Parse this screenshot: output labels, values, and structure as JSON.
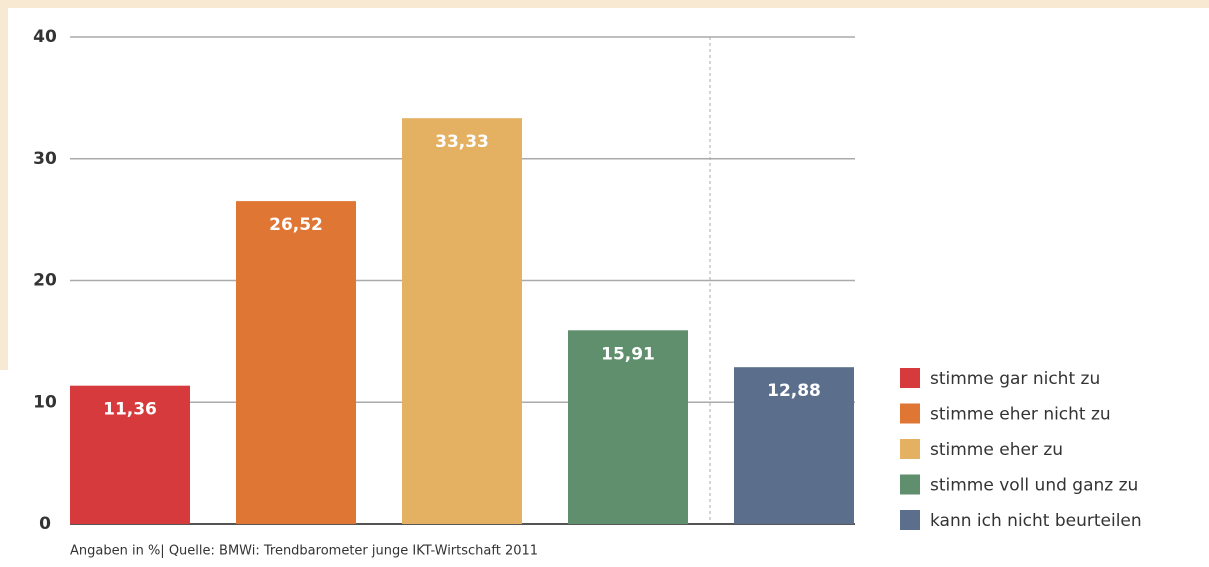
{
  "chart_data": {
    "type": "bar",
    "categories": [
      "stimme gar nicht zu",
      "stimme eher nicht zu",
      "stimme eher zu",
      "stimme voll und ganz zu",
      "kann ich nicht beurteilen"
    ],
    "values": [
      11.36,
      26.52,
      33.33,
      15.91,
      12.88
    ],
    "value_labels": [
      "11,36",
      "26,52",
      "33,33",
      "15,91",
      "12,88"
    ],
    "colors": [
      "#d63a3c",
      "#e07634",
      "#e4b062",
      "#5f8f6c",
      "#5b6f8d"
    ],
    "ylim": [
      0,
      40
    ],
    "yticks": [
      0,
      10,
      20,
      30,
      40
    ],
    "grid": true,
    "legend": "right",
    "note": "Angaben in %| Quelle: BMWi: Trendbarometer junge IKT-Wirtschaft 2011"
  }
}
